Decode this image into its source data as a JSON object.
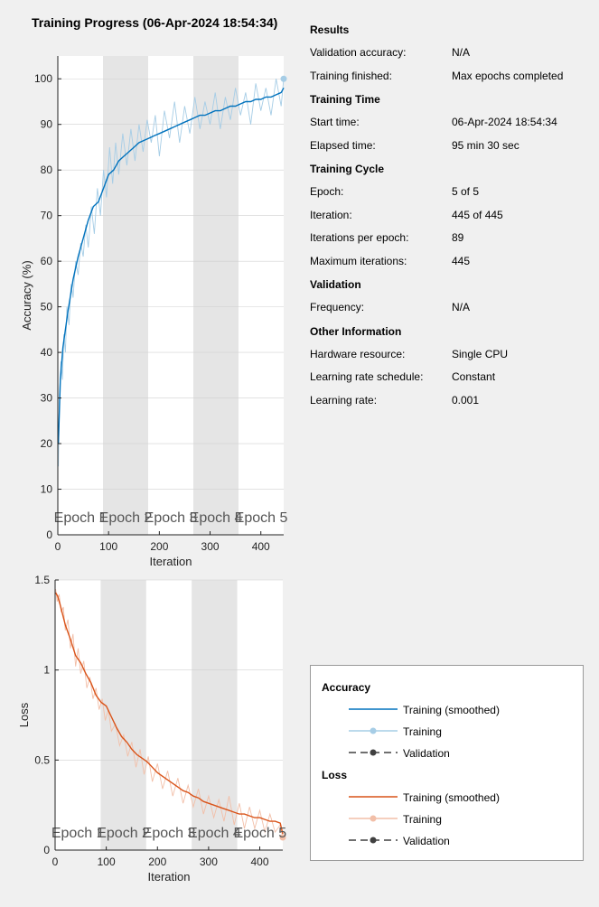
{
  "title": "Training Progress (06-Apr-2024 18:54:34)",
  "info": {
    "sections": [
      {
        "heading": "Results",
        "rows": [
          {
            "label": "Validation accuracy:",
            "value": "N/A"
          },
          {
            "label": "Training finished:",
            "value": "Max epochs completed"
          }
        ]
      },
      {
        "heading": "Training Time",
        "rows": [
          {
            "label": "Start time:",
            "value": "06-Apr-2024 18:54:34"
          },
          {
            "label": "Elapsed time:",
            "value": "95 min 30 sec"
          }
        ]
      },
      {
        "heading": "Training Cycle",
        "rows": [
          {
            "label": "Epoch:",
            "value": "5 of 5"
          },
          {
            "label": "Iteration:",
            "value": "445 of 445"
          },
          {
            "label": "Iterations per epoch:",
            "value": "89"
          },
          {
            "label": "Maximum iterations:",
            "value": "445"
          }
        ]
      },
      {
        "heading": "Validation",
        "rows": [
          {
            "label": "Frequency:",
            "value": "N/A"
          }
        ]
      },
      {
        "heading": "Other Information",
        "rows": [
          {
            "label": "Hardware resource:",
            "value": "Single CPU"
          },
          {
            "label": "Learning rate schedule:",
            "value": "Constant"
          },
          {
            "label": "Learning rate:",
            "value": "0.001"
          }
        ]
      }
    ]
  },
  "legend": {
    "accuracy_heading": "Accuracy",
    "loss_heading": "Loss",
    "smoothed_label": "Training (smoothed)",
    "training_label": "Training",
    "validation_label": "Validation"
  },
  "colors": {
    "acc_smoothed": "#0072bd",
    "acc_raw": "#a6cde6",
    "loss_smoothed": "#d95319",
    "loss_raw": "#f2bfa8",
    "validation": "#404040",
    "epoch_shade": "#e5e5e5"
  },
  "chart_data": [
    {
      "type": "line",
      "xlabel": "Iteration",
      "ylabel": "Accuracy (%)",
      "xlim": [
        0,
        445
      ],
      "ylim": [
        0,
        105
      ],
      "xticks": [
        0,
        100,
        200,
        300,
        400
      ],
      "yticks": [
        0,
        10,
        20,
        30,
        40,
        50,
        60,
        70,
        80,
        90,
        100
      ],
      "grid": true,
      "epoch_labels": [
        "Epoch 1",
        "Epoch 2",
        "Epoch 3",
        "Epoch 4",
        "Epoch 5"
      ],
      "epoch_boundaries": [
        0,
        89,
        178,
        267,
        356,
        445
      ],
      "series": [
        {
          "name": "Training (smoothed)",
          "x": [
            1,
            5,
            10,
            20,
            30,
            40,
            50,
            60,
            70,
            80,
            90,
            100,
            110,
            120,
            130,
            140,
            150,
            160,
            170,
            180,
            190,
            200,
            210,
            220,
            230,
            240,
            250,
            260,
            270,
            280,
            290,
            300,
            310,
            320,
            330,
            340,
            350,
            360,
            370,
            380,
            390,
            400,
            410,
            420,
            430,
            440,
            445
          ],
          "values": [
            20,
            34,
            41,
            49,
            56,
            61,
            65,
            69,
            72,
            73,
            76,
            79,
            80,
            82,
            83,
            84,
            85,
            86,
            86.5,
            87,
            87.5,
            88,
            88.5,
            89,
            89.5,
            90,
            90.5,
            91,
            91.5,
            92,
            92,
            92.5,
            93,
            93,
            93.5,
            94,
            94,
            94.5,
            95,
            95,
            95.5,
            95.5,
            96,
            96,
            96.5,
            97,
            98
          ]
        },
        {
          "name": "Training",
          "x": [
            1,
            3,
            6,
            9,
            12,
            15,
            18,
            22,
            26,
            30,
            35,
            40,
            45,
            50,
            55,
            60,
            66,
            72,
            78,
            84,
            90,
            96,
            102,
            108,
            114,
            120,
            128,
            136,
            144,
            152,
            160,
            168,
            176,
            184,
            192,
            200,
            210,
            220,
            230,
            240,
            250,
            260,
            270,
            280,
            290,
            300,
            310,
            320,
            330,
            340,
            350,
            360,
            370,
            380,
            390,
            400,
            410,
            420,
            430,
            440,
            445
          ],
          "values": [
            15,
            30,
            38,
            34,
            44,
            40,
            50,
            46,
            55,
            52,
            60,
            57,
            64,
            61,
            68,
            63,
            72,
            66,
            76,
            70,
            80,
            74,
            85,
            77,
            86,
            79,
            88,
            81,
            89,
            82,
            90,
            84,
            91,
            86,
            92,
            83,
            93,
            87,
            95,
            86,
            94,
            88,
            96,
            89,
            95,
            90,
            97,
            89,
            96,
            91,
            98,
            92,
            97,
            90,
            99,
            93,
            98,
            92,
            100,
            94,
            100
          ]
        }
      ]
    },
    {
      "type": "line",
      "xlabel": "Iteration",
      "ylabel": "Loss",
      "xlim": [
        0,
        445
      ],
      "ylim": [
        0,
        1.5
      ],
      "xticks": [
        0,
        100,
        200,
        300,
        400
      ],
      "yticks": [
        0,
        0.5,
        1,
        1.5
      ],
      "ytick_labels": [
        "0",
        "0.5",
        "1",
        "1.5"
      ],
      "grid": true,
      "epoch_labels": [
        "Epoch 1",
        "Epoch 2",
        "Epoch 3",
        "Epoch 4",
        "Epoch 5"
      ],
      "epoch_boundaries": [
        0,
        89,
        178,
        267,
        356,
        445
      ],
      "series": [
        {
          "name": "Training (smoothed)",
          "x": [
            1,
            5,
            10,
            20,
            30,
            40,
            50,
            60,
            70,
            80,
            90,
            100,
            110,
            120,
            130,
            140,
            150,
            160,
            170,
            180,
            190,
            200,
            210,
            220,
            230,
            240,
            250,
            260,
            270,
            280,
            290,
            300,
            310,
            320,
            330,
            340,
            350,
            360,
            370,
            380,
            390,
            400,
            410,
            420,
            430,
            440,
            445
          ],
          "values": [
            1.43,
            1.41,
            1.36,
            1.25,
            1.17,
            1.08,
            1.04,
            0.98,
            0.93,
            0.86,
            0.82,
            0.8,
            0.74,
            0.68,
            0.63,
            0.6,
            0.56,
            0.53,
            0.51,
            0.49,
            0.46,
            0.43,
            0.41,
            0.39,
            0.37,
            0.35,
            0.33,
            0.32,
            0.3,
            0.29,
            0.27,
            0.26,
            0.25,
            0.24,
            0.23,
            0.22,
            0.21,
            0.2,
            0.2,
            0.19,
            0.18,
            0.18,
            0.17,
            0.16,
            0.16,
            0.15,
            0.09
          ]
        },
        {
          "name": "Training",
          "x": [
            1,
            4,
            8,
            12,
            16,
            20,
            25,
            30,
            35,
            40,
            45,
            50,
            56,
            62,
            68,
            74,
            80,
            86,
            92,
            98,
            104,
            110,
            118,
            126,
            134,
            142,
            150,
            158,
            166,
            174,
            182,
            190,
            200,
            210,
            220,
            230,
            240,
            250,
            260,
            270,
            280,
            290,
            300,
            310,
            320,
            330,
            340,
            350,
            360,
            370,
            380,
            390,
            400,
            410,
            420,
            430,
            440,
            445
          ],
          "values": [
            1.45,
            1.38,
            1.42,
            1.32,
            1.35,
            1.22,
            1.28,
            1.12,
            1.2,
            1.02,
            1.12,
            0.98,
            1.05,
            0.9,
            0.96,
            0.84,
            0.9,
            0.78,
            0.84,
            0.72,
            0.78,
            0.66,
            0.7,
            0.58,
            0.64,
            0.52,
            0.6,
            0.46,
            0.56,
            0.42,
            0.52,
            0.38,
            0.48,
            0.34,
            0.44,
            0.3,
            0.4,
            0.26,
            0.36,
            0.24,
            0.34,
            0.2,
            0.3,
            0.18,
            0.28,
            0.16,
            0.3,
            0.14,
            0.26,
            0.12,
            0.24,
            0.12,
            0.22,
            0.1,
            0.2,
            0.1,
            0.14,
            0.07
          ]
        }
      ]
    }
  ]
}
